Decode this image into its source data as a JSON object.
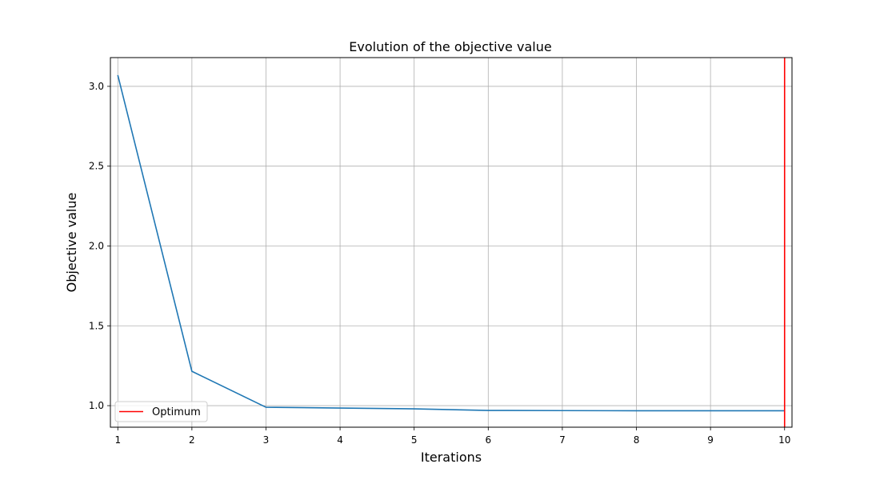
{
  "chart_data": {
    "type": "line",
    "title": "Evolution of the objective value",
    "xlabel": "Iterations",
    "ylabel": "Objective value",
    "x": [
      1,
      2,
      3,
      4,
      5,
      6,
      7,
      8,
      9,
      10
    ],
    "xticks": [
      "1",
      "2",
      "3",
      "4",
      "5",
      "6",
      "7",
      "8",
      "9",
      "10"
    ],
    "yticks": [
      "1.0",
      "1.5",
      "2.0",
      "2.5",
      "3.0"
    ],
    "ytick_values": [
      1.0,
      1.5,
      2.0,
      2.5,
      3.0
    ],
    "xlim": [
      0.9,
      10.1
    ],
    "ylim": [
      0.865,
      3.18
    ],
    "grid": true,
    "legend_position": "lower-left",
    "series": [
      {
        "values": [
          3.07,
          1.215,
          0.99,
          0.985,
          0.98,
          0.97,
          0.969,
          0.968,
          0.968,
          0.968
        ],
        "color": "#1f77b4"
      }
    ],
    "vline": {
      "name": "Optimum",
      "x": 10,
      "color": "#ff0000"
    }
  }
}
